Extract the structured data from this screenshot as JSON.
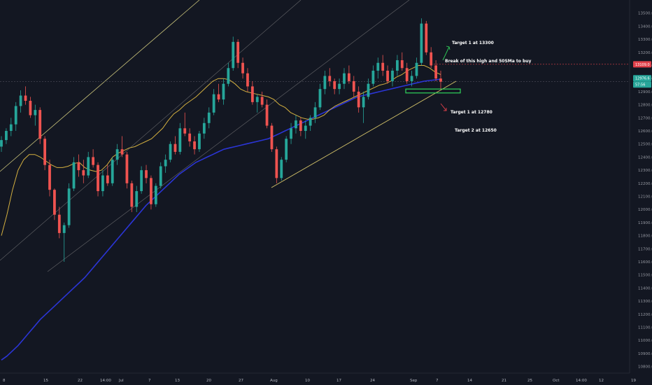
{
  "chart_data": {
    "type": "candlestick",
    "title": "",
    "xlabel": "",
    "ylabel": "",
    "ylim": [
      10750,
      13600
    ],
    "y_ticks": [
      "10800.0",
      "10900.0",
      "11000.0",
      "11100.0",
      "11200.0",
      "11300.0",
      "11400.0",
      "11500.0",
      "11600.0",
      "11700.0",
      "11800.0",
      "11900.0",
      "12000.0",
      "12100.0",
      "12200.0",
      "12300.0",
      "12400.0",
      "12500.0",
      "12600.0",
      "12700.0",
      "12800.0",
      "12900.0",
      "13000.0",
      "13100.0",
      "13200.0",
      "13300.0",
      "13400.0",
      "13500.0"
    ],
    "x_ticks": [
      "8",
      "15",
      "22",
      "14:00",
      "Jul",
      "7",
      "13",
      "20",
      "27",
      "Aug",
      "10",
      "17",
      "24",
      "Sep",
      "7",
      "14",
      "21",
      "25",
      "Oct",
      "14:00",
      "12",
      "19"
    ],
    "grid": false,
    "price_badges": [
      {
        "label": "13109.0",
        "color": "#e0404a"
      },
      {
        "label": "12976.6",
        "color": "#26a69a"
      },
      {
        "label": "57:56",
        "color": "#26a69a"
      }
    ],
    "annotations": [
      "Target 1 at 13300",
      "Break of this high and 50SMa to buy",
      "Target 1 at 12780",
      "Target 2 at 12650"
    ],
    "trendline_points": [
      {
        "date_index": 0,
        "value": 12250
      },
      {
        "date_index": 131,
        "value": 12990
      }
    ],
    "support_zone": [
      12890,
      12920
    ],
    "sma50": [
      11800,
      11960,
      12150,
      12300,
      12380,
      12420,
      12420,
      12400,
      12370,
      12340,
      12320,
      12320,
      12330,
      12350,
      12360,
      12320,
      12300,
      12290,
      12300,
      12340,
      12400,
      12430,
      12450,
      12470,
      12480,
      12500,
      12520,
      12540,
      12580,
      12620,
      12680,
      12730,
      12760,
      12800,
      12830,
      12860,
      12900,
      12940,
      12980,
      13000,
      13000,
      12990,
      12960,
      12920,
      12900,
      12890,
      12880,
      12870,
      12860,
      12840,
      12800,
      12780,
      12740,
      12720,
      12700,
      12690,
      12690,
      12700,
      12720,
      12760,
      12790,
      12810,
      12830,
      12850,
      12870,
      12890,
      12910,
      12930,
      12950,
      12960,
      12980,
      13010,
      13030,
      13060,
      13080,
      13100,
      13100,
      13080,
      13050,
      13030
    ],
    "sma200": [
      10850,
      10880,
      10920,
      10960,
      11010,
      11060,
      11110,
      11160,
      11200,
      11240,
      11280,
      11320,
      11360,
      11400,
      11440,
      11480,
      11530,
      11580,
      11630,
      11680,
      11730,
      11780,
      11830,
      11880,
      11930,
      11980,
      12030,
      12070,
      12110,
      12150,
      12190,
      12230,
      12270,
      12300,
      12330,
      12360,
      12380,
      12400,
      12420,
      12440,
      12460,
      12470,
      12480,
      12490,
      12500,
      12510,
      12520,
      12530,
      12540,
      12560,
      12580,
      12600,
      12620,
      12640,
      12660,
      12680,
      12700,
      12720,
      12740,
      12760,
      12780,
      12800,
      12820,
      12840,
      12860,
      12870,
      12880,
      12890,
      12900,
      12910,
      12920,
      12930,
      12940,
      12950,
      12960,
      12970,
      12980,
      12985,
      12990,
      12995
    ],
    "candles": [
      [
        12480,
        12560,
        12440,
        12530
      ],
      [
        12530,
        12620,
        12500,
        12600
      ],
      [
        12600,
        12700,
        12560,
        12650
      ],
      [
        12650,
        12820,
        12600,
        12790
      ],
      [
        12790,
        12910,
        12740,
        12870
      ],
      [
        12870,
        12940,
        12800,
        12830
      ],
      [
        12830,
        12860,
        12700,
        12720
      ],
      [
        12720,
        12800,
        12640,
        12760
      ],
      [
        12760,
        12780,
        12500,
        12540
      ],
      [
        12540,
        12560,
        12300,
        12340
      ],
      [
        12340,
        12380,
        12100,
        12150
      ],
      [
        12150,
        12160,
        11920,
        11960
      ],
      [
        11960,
        12020,
        11780,
        11820
      ],
      [
        11820,
        11900,
        11600,
        11880
      ],
      [
        11880,
        12200,
        11860,
        12160
      ],
      [
        12160,
        12400,
        12140,
        12360
      ],
      [
        12360,
        12420,
        12250,
        12300
      ],
      [
        12300,
        12380,
        12200,
        12260
      ],
      [
        12260,
        12440,
        12240,
        12400
      ],
      [
        12400,
        12460,
        12320,
        12340
      ],
      [
        12340,
        12360,
        12100,
        12140
      ],
      [
        12140,
        12300,
        12100,
        12260
      ],
      [
        12260,
        12340,
        12180,
        12200
      ],
      [
        12200,
        12400,
        12180,
        12380
      ],
      [
        12380,
        12500,
        12340,
        12460
      ],
      [
        12460,
        12560,
        12400,
        12420
      ],
      [
        12420,
        12440,
        12160,
        12200
      ],
      [
        12200,
        12220,
        11980,
        12020
      ],
      [
        12020,
        12180,
        11980,
        12140
      ],
      [
        12140,
        12330,
        12120,
        12300
      ],
      [
        12300,
        12340,
        12200,
        12240
      ],
      [
        12240,
        12260,
        12000,
        12040
      ],
      [
        12040,
        12200,
        12020,
        12180
      ],
      [
        12180,
        12360,
        12160,
        12330
      ],
      [
        12330,
        12420,
        12280,
        12380
      ],
      [
        12380,
        12520,
        12360,
        12500
      ],
      [
        12500,
        12560,
        12420,
        12440
      ],
      [
        12440,
        12660,
        12420,
        12620
      ],
      [
        12620,
        12740,
        12560,
        12580
      ],
      [
        12580,
        12620,
        12480,
        12520
      ],
      [
        12520,
        12560,
        12420,
        12460
      ],
      [
        12460,
        12600,
        12440,
        12580
      ],
      [
        12580,
        12700,
        12540,
        12660
      ],
      [
        12660,
        12780,
        12620,
        12740
      ],
      [
        12740,
        12920,
        12720,
        12880
      ],
      [
        12880,
        12960,
        12820,
        12840
      ],
      [
        12840,
        13000,
        12800,
        12960
      ],
      [
        12960,
        13120,
        12940,
        13080
      ],
      [
        13080,
        13320,
        13060,
        13280
      ],
      [
        13280,
        13300,
        13080,
        13120
      ],
      [
        13120,
        13160,
        13000,
        13040
      ],
      [
        13040,
        13080,
        12900,
        12940
      ],
      [
        12940,
        12980,
        12800,
        12820
      ],
      [
        12820,
        12880,
        12740,
        12860
      ],
      [
        12860,
        12900,
        12780,
        12800
      ],
      [
        12800,
        12840,
        12620,
        12640
      ],
      [
        12640,
        12660,
        12440,
        12460
      ],
      [
        12460,
        12480,
        12200,
        12240
      ],
      [
        12240,
        12400,
        12220,
        12380
      ],
      [
        12380,
        12560,
        12360,
        12540
      ],
      [
        12540,
        12660,
        12500,
        12620
      ],
      [
        12620,
        12720,
        12580,
        12680
      ],
      [
        12680,
        12700,
        12560,
        12600
      ],
      [
        12600,
        12680,
        12540,
        12640
      ],
      [
        12640,
        12720,
        12600,
        12700
      ],
      [
        12700,
        12820,
        12660,
        12780
      ],
      [
        12780,
        12960,
        12760,
        12920
      ],
      [
        12920,
        13060,
        12880,
        13020
      ],
      [
        13020,
        13080,
        12940,
        12980
      ],
      [
        12980,
        13000,
        12880,
        12920
      ],
      [
        12920,
        13000,
        12880,
        12960
      ],
      [
        12960,
        13080,
        12920,
        13040
      ],
      [
        13040,
        13100,
        12960,
        12980
      ],
      [
        12980,
        13020,
        12860,
        12900
      ],
      [
        12900,
        12940,
        12740,
        12780
      ],
      [
        12780,
        12900,
        12660,
        12860
      ],
      [
        12860,
        13000,
        12840,
        12960
      ],
      [
        12960,
        13100,
        12940,
        13060
      ],
      [
        13060,
        13160,
        13000,
        13120
      ],
      [
        13120,
        13180,
        13020,
        13060
      ],
      [
        13060,
        13100,
        12960,
        12980
      ],
      [
        12980,
        13080,
        12940,
        13060
      ],
      [
        13060,
        13180,
        13020,
        13140
      ],
      [
        13140,
        13200,
        13060,
        13080
      ],
      [
        13080,
        13120,
        12960,
        12980
      ],
      [
        12980,
        13060,
        12940,
        13020
      ],
      [
        13020,
        13160,
        13000,
        13120
      ],
      [
        13120,
        13460,
        13100,
        13420
      ],
      [
        13420,
        13440,
        13180,
        13200
      ],
      [
        13200,
        13240,
        13080,
        13100
      ],
      [
        13100,
        13140,
        12980,
        13000
      ],
      [
        13000,
        13060,
        12920,
        12976
      ]
    ]
  }
}
